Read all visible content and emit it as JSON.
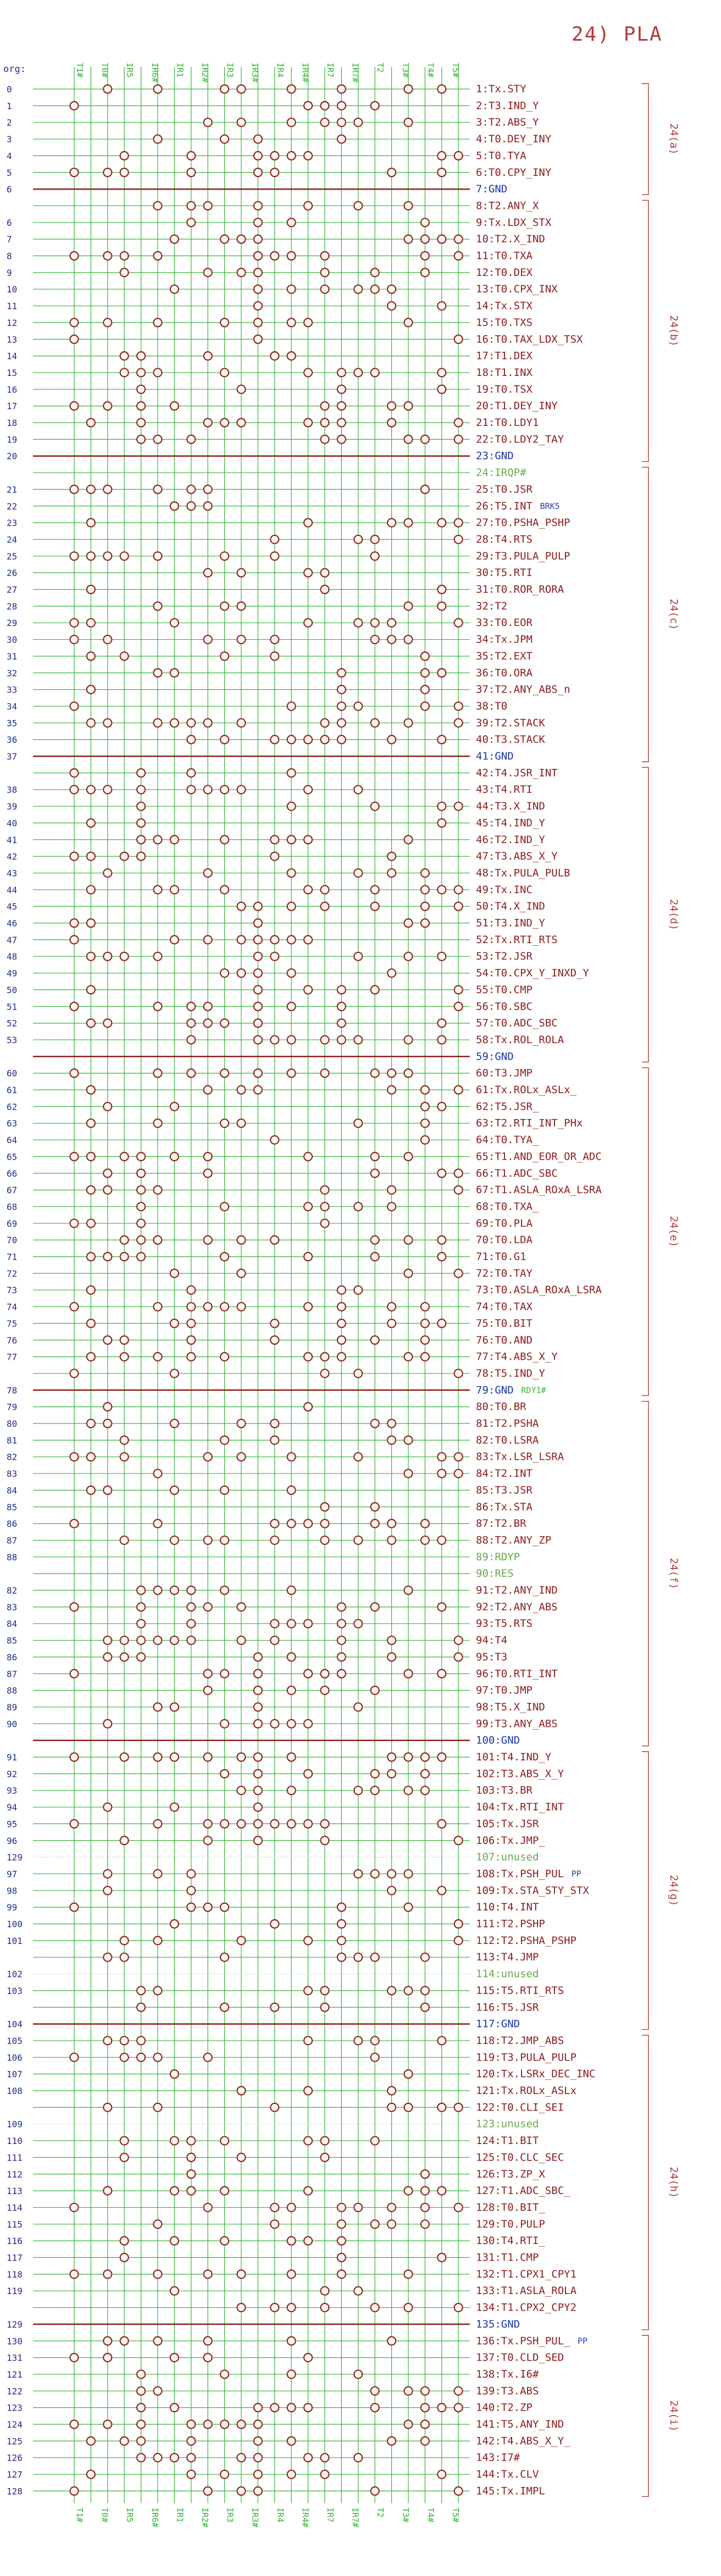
{
  "title": "24) PLA",
  "org_label": "org:",
  "colors": {
    "grid": "#36b336",
    "grid_light": "#b7e6b7",
    "node": "#8b2a2a",
    "rowlabel": "#8b1c1c",
    "gnd": "#1b36a8",
    "orgnum": "#1b2f8c",
    "unused": "#6aa84f",
    "bracket": "#b23b3b",
    "note": "#2b3fb0"
  },
  "column_headers": [
    "T1#",
    "T0#",
    "IR5",
    "IR6#",
    "IR1",
    "IR2#",
    "IR3",
    "IR3#",
    "IR4",
    "IR4#",
    "IR7",
    "IR7#",
    "T2",
    "T3#",
    "T4#",
    "T5#"
  ],
  "brks_note": "BRK5",
  "rdy1_note": "RDY1#",
  "pp_note": "PP",
  "io_label": "IO",
  "org_numbers": [
    "0",
    "1",
    "2",
    "3",
    "4",
    "5",
    "6",
    "",
    "6",
    "7",
    "8",
    "9",
    "10",
    "11",
    "12",
    "13",
    "14",
    "15",
    "16",
    "17",
    "18",
    "19",
    "20",
    "",
    "21",
    "22",
    "23",
    "24",
    "25",
    "26",
    "27",
    "28",
    "29",
    "30",
    "31",
    "32",
    "33",
    "34",
    "35",
    "36",
    "37",
    "",
    "38",
    "39",
    "40",
    "41",
    "42",
    "43",
    "44",
    "45",
    "46",
    "47",
    "48",
    "49",
    "50",
    "51",
    "52",
    "53",
    "",
    "60",
    "61",
    "62",
    "63",
    "64",
    "65",
    "66",
    "67",
    "68",
    "69",
    "70",
    "71",
    "72",
    "73",
    "74",
    "75",
    "76",
    "77",
    "",
    "78",
    "79",
    "80",
    "81",
    "82",
    "83",
    "84",
    "85",
    "86",
    "87",
    "88",
    "",
    "82",
    "83",
    "84",
    "85",
    "86",
    "87",
    "88",
    "89",
    "90",
    "",
    "91",
    "92",
    "93",
    "94",
    "95",
    "96",
    "129",
    "97",
    "98",
    "99",
    "100",
    "101",
    "",
    "102",
    "103",
    "",
    "104",
    "105",
    "106",
    "107",
    "108",
    "",
    "109",
    "110",
    "111",
    "112",
    "113",
    "114",
    "115",
    "116",
    "117",
    "118",
    "119",
    "",
    "129",
    "130",
    "131",
    "121",
    "122",
    "123",
    "124",
    "125",
    "126",
    "127",
    "128"
  ],
  "rows": [
    {
      "label": "1:Tx.STY",
      "type": "n"
    },
    {
      "label": "2:T3.IND_Y",
      "type": "n"
    },
    {
      "label": "3:T2.ABS_Y",
      "type": "n"
    },
    {
      "label": "4:T0.DEY_INY",
      "type": "n"
    },
    {
      "label": "5:T0.TYA",
      "type": "n"
    },
    {
      "label": "6:T0.CPY_INY",
      "type": "n"
    },
    {
      "label": "7:GND",
      "type": "gnd"
    },
    {
      "label": "8:T2.ANY_X",
      "type": "n"
    },
    {
      "label": "9:Tx.LDX_STX",
      "type": "n"
    },
    {
      "label": "10:T2.X_IND",
      "type": "n"
    },
    {
      "label": "11:T0.TXA",
      "type": "n"
    },
    {
      "label": "12:T0.DEX",
      "type": "n"
    },
    {
      "label": "13:T0.CPX_INX",
      "type": "n"
    },
    {
      "label": "14:Tx.STX",
      "type": "n"
    },
    {
      "label": "15:T0.TXS",
      "type": "n"
    },
    {
      "label": "16:T0.TAX_LDX_TSX",
      "type": "n"
    },
    {
      "label": "17:T1.DEX",
      "type": "n"
    },
    {
      "label": "18:T1.INX",
      "type": "n"
    },
    {
      "label": "19:T0.TSX",
      "type": "n"
    },
    {
      "label": "20:T1.DEY_INY",
      "type": "n"
    },
    {
      "label": "21:T0.LDY1",
      "type": "n"
    },
    {
      "label": "22:T0.LDY2_TAY",
      "type": "n"
    },
    {
      "label": "23:GND",
      "type": "gnd"
    },
    {
      "label": "24:IRQP#",
      "type": "special"
    },
    {
      "label": "25:T0.JSR",
      "type": "n"
    },
    {
      "label": "26:T5.INT",
      "type": "n",
      "note": "BRK5"
    },
    {
      "label": "27:T0.PSHA_PSHP",
      "type": "n"
    },
    {
      "label": "28:T4.RTS",
      "type": "n"
    },
    {
      "label": "29:T3.PULA_PULP",
      "type": "n"
    },
    {
      "label": "30:T5.RTI",
      "type": "n"
    },
    {
      "label": "31:T0.ROR_RORA",
      "type": "n"
    },
    {
      "label": "32:T2",
      "type": "n"
    },
    {
      "label": "33:T0.EOR",
      "type": "n"
    },
    {
      "label": "34:Tx.JPM",
      "type": "n"
    },
    {
      "label": "35:T2.EXT",
      "type": "n"
    },
    {
      "label": "36:T0.ORA",
      "type": "n"
    },
    {
      "label": "37:T2.ANY_ABS_n",
      "type": "n"
    },
    {
      "label": "38:T0",
      "type": "n"
    },
    {
      "label": "39:T2.STACK",
      "type": "n"
    },
    {
      "label": "40:T3.STACK",
      "type": "n"
    },
    {
      "label": "41:GND",
      "type": "gnd"
    },
    {
      "label": "42:T4.JSR_INT",
      "type": "n"
    },
    {
      "label": "43:T4.RTI",
      "type": "n"
    },
    {
      "label": "44:T3.X_IND",
      "type": "n"
    },
    {
      "label": "45:T4.IND_Y",
      "type": "n"
    },
    {
      "label": "46:T2.IND_Y",
      "type": "n"
    },
    {
      "label": "47:T3.ABS_X_Y",
      "type": "n"
    },
    {
      "label": "48:Tx.PULA_PULB",
      "type": "n"
    },
    {
      "label": "49:Tx.INC",
      "type": "n"
    },
    {
      "label": "50:T4.X_IND",
      "type": "n"
    },
    {
      "label": "51:T3.IND_Y",
      "type": "n"
    },
    {
      "label": "52:Tx.RTI_RTS",
      "type": "n"
    },
    {
      "label": "53:T2.JSR",
      "type": "n"
    },
    {
      "label": "54:T0.CPX_Y_INXD_Y",
      "type": "n"
    },
    {
      "label": "55:T0.CMP",
      "type": "n"
    },
    {
      "label": "56:T0.SBC",
      "type": "n"
    },
    {
      "label": "57:T0.ADC_SBC",
      "type": "n"
    },
    {
      "label": "58:Tx.ROL_ROLA",
      "type": "n"
    },
    {
      "label": "59:GND",
      "type": "gnd"
    },
    {
      "label": "60:T3.JMP",
      "type": "n"
    },
    {
      "label": "61:Tx.ROLx_ASLx_",
      "type": "n"
    },
    {
      "label": "62:T5.JSR_",
      "type": "n"
    },
    {
      "label": "63:T2.RTI_INT_PHx",
      "type": "n"
    },
    {
      "label": "64:T0.TYA_",
      "type": "n"
    },
    {
      "label": "65:T1.AND_EOR_OR_ADC",
      "type": "n"
    },
    {
      "label": "66:T1.ADC_SBC",
      "type": "n"
    },
    {
      "label": "67:T1.ASLA_ROxA_LSRA",
      "type": "n"
    },
    {
      "label": "68:T0.TXA_",
      "type": "n"
    },
    {
      "label": "69:T0.PLA",
      "type": "n"
    },
    {
      "label": "70:T0.LDA",
      "type": "n"
    },
    {
      "label": "71:T0.G1",
      "type": "n"
    },
    {
      "label": "72:T0.TAY",
      "type": "n"
    },
    {
      "label": "73:T0.ASLA_ROxA_LSRA",
      "type": "n"
    },
    {
      "label": "74:T0.TAX",
      "type": "n"
    },
    {
      "label": "75:T0.BIT",
      "type": "n"
    },
    {
      "label": "76:T0.AND",
      "type": "n"
    },
    {
      "label": "77:T4.ABS_X_Y",
      "type": "n"
    },
    {
      "label": "78:T5.IND_Y",
      "type": "n"
    },
    {
      "label": "79:GND",
      "type": "gnd",
      "note": "RDY1#"
    },
    {
      "label": "80:T0.BR",
      "type": "n"
    },
    {
      "label": "81:T2.PSHA",
      "type": "n"
    },
    {
      "label": "82:T0.LSRA",
      "type": "n"
    },
    {
      "label": "83:Tx.LSR_LSRA",
      "type": "n"
    },
    {
      "label": "84:T2.INT",
      "type": "n"
    },
    {
      "label": "85:T3.JSR",
      "type": "n"
    },
    {
      "label": "86:Tx.STA",
      "type": "n"
    },
    {
      "label": "87:T2.BR",
      "type": "n"
    },
    {
      "label": "88:T2.ANY_ZP",
      "type": "n"
    },
    {
      "label": "89:RDYP",
      "type": "special"
    },
    {
      "label": "90:RES",
      "type": "special"
    },
    {
      "label": "91:T2.ANY_IND",
      "type": "n"
    },
    {
      "label": "92:T2.ANY_ABS",
      "type": "n"
    },
    {
      "label": "93:T5.RTS",
      "type": "n"
    },
    {
      "label": "94:T4",
      "type": "n"
    },
    {
      "label": "95:T3",
      "type": "n"
    },
    {
      "label": "96:T0.RTI_INT",
      "type": "n"
    },
    {
      "label": "97:T0.JMP",
      "type": "n"
    },
    {
      "label": "98:T5.X_IND",
      "type": "n"
    },
    {
      "label": "99:T3.ANY_ABS",
      "type": "n"
    },
    {
      "label": "100:GND",
      "type": "gnd"
    },
    {
      "label": "101:T4.IND_Y",
      "type": "n"
    },
    {
      "label": "102:T3.ABS_X_Y",
      "type": "n"
    },
    {
      "label": "103:T3.BR",
      "type": "n"
    },
    {
      "label": "104:Tx.RTI_INT",
      "type": "n"
    },
    {
      "label": "105:Tx.JSR",
      "type": "n"
    },
    {
      "label": "106:Tx.JMP_",
      "type": "n"
    },
    {
      "label": "107:unused",
      "type": "unused"
    },
    {
      "label": "108:Tx.PSH_PUL",
      "type": "n",
      "note": "PP"
    },
    {
      "label": "109:Tx.STA_STY_STX",
      "type": "n"
    },
    {
      "label": "110:T4.INT",
      "type": "n"
    },
    {
      "label": "111:T2.PSHP",
      "type": "n"
    },
    {
      "label": "112:T2.PSHA_PSHP",
      "type": "n"
    },
    {
      "label": "113:T4.JMP",
      "type": "n"
    },
    {
      "label": "114:unused",
      "type": "unused"
    },
    {
      "label": "115:T5.RTI_RTS",
      "type": "n"
    },
    {
      "label": "116:T5.JSR",
      "type": "n"
    },
    {
      "label": "117:GND",
      "type": "gnd"
    },
    {
      "label": "118:T2.JMP_ABS",
      "type": "n"
    },
    {
      "label": "119:T3.PULA_PULP",
      "type": "n"
    },
    {
      "label": "120:Tx.LSRx_DEC_INC",
      "type": "n"
    },
    {
      "label": "121:Tx.ROLx_ASLx",
      "type": "n"
    },
    {
      "label": "122:T0.CLI_SEI",
      "type": "n"
    },
    {
      "label": "123:unused",
      "type": "unused"
    },
    {
      "label": "124:T1.BIT",
      "type": "n"
    },
    {
      "label": "125:T0.CLC_SEC",
      "type": "n"
    },
    {
      "label": "126:T3.ZP_X",
      "type": "n"
    },
    {
      "label": "127:T1.ADC_SBC_",
      "type": "n"
    },
    {
      "label": "128:T0.BIT_",
      "type": "n"
    },
    {
      "label": "129:T0.PULP",
      "type": "n"
    },
    {
      "label": "130:T4.RTI_",
      "type": "n"
    },
    {
      "label": "131:T1.CMP",
      "type": "n"
    },
    {
      "label": "132:T1.CPX1_CPY1",
      "type": "n"
    },
    {
      "label": "133:T1.ASLA_ROLA",
      "type": "n"
    },
    {
      "label": "134:T1.CPX2_CPY2",
      "type": "n"
    },
    {
      "label": "135:GND",
      "type": "gnd"
    },
    {
      "label": "136:Tx.PSH_PUL_",
      "type": "n",
      "note": "PP"
    },
    {
      "label": "137:T0.CLD_SED",
      "type": "n"
    },
    {
      "label": "138:Tx.I6#",
      "type": "n"
    },
    {
      "label": "139:T3.ABS",
      "type": "n"
    },
    {
      "label": "140:T2.ZP",
      "type": "n"
    },
    {
      "label": "141:T5.ANY_IND",
      "type": "n"
    },
    {
      "label": "142:T4.ABS_X_Y_",
      "type": "n"
    },
    {
      "label": "143:I7#",
      "type": "n"
    },
    {
      "label": "144:Tx.CLV",
      "type": "n"
    },
    {
      "label": "145:Tx.IMPL",
      "type": "n"
    }
  ],
  "sections": [
    {
      "label": "24(a)",
      "from": 0,
      "to": 6
    },
    {
      "label": "24(b)",
      "from": 7,
      "to": 22
    },
    {
      "label": "24(c)",
      "from": 23,
      "to": 40
    },
    {
      "label": "24(d)",
      "from": 41,
      "to": 58
    },
    {
      "label": "24(e)",
      "from": 59,
      "to": 78
    },
    {
      "label": "24(f)",
      "from": 79,
      "to": 99
    },
    {
      "label": "24(g)",
      "from": 100,
      "to": 116
    },
    {
      "label": "24(h)",
      "from": 117,
      "to": 134
    },
    {
      "label": "24(i)",
      "from": 135,
      "to": 144
    }
  ]
}
